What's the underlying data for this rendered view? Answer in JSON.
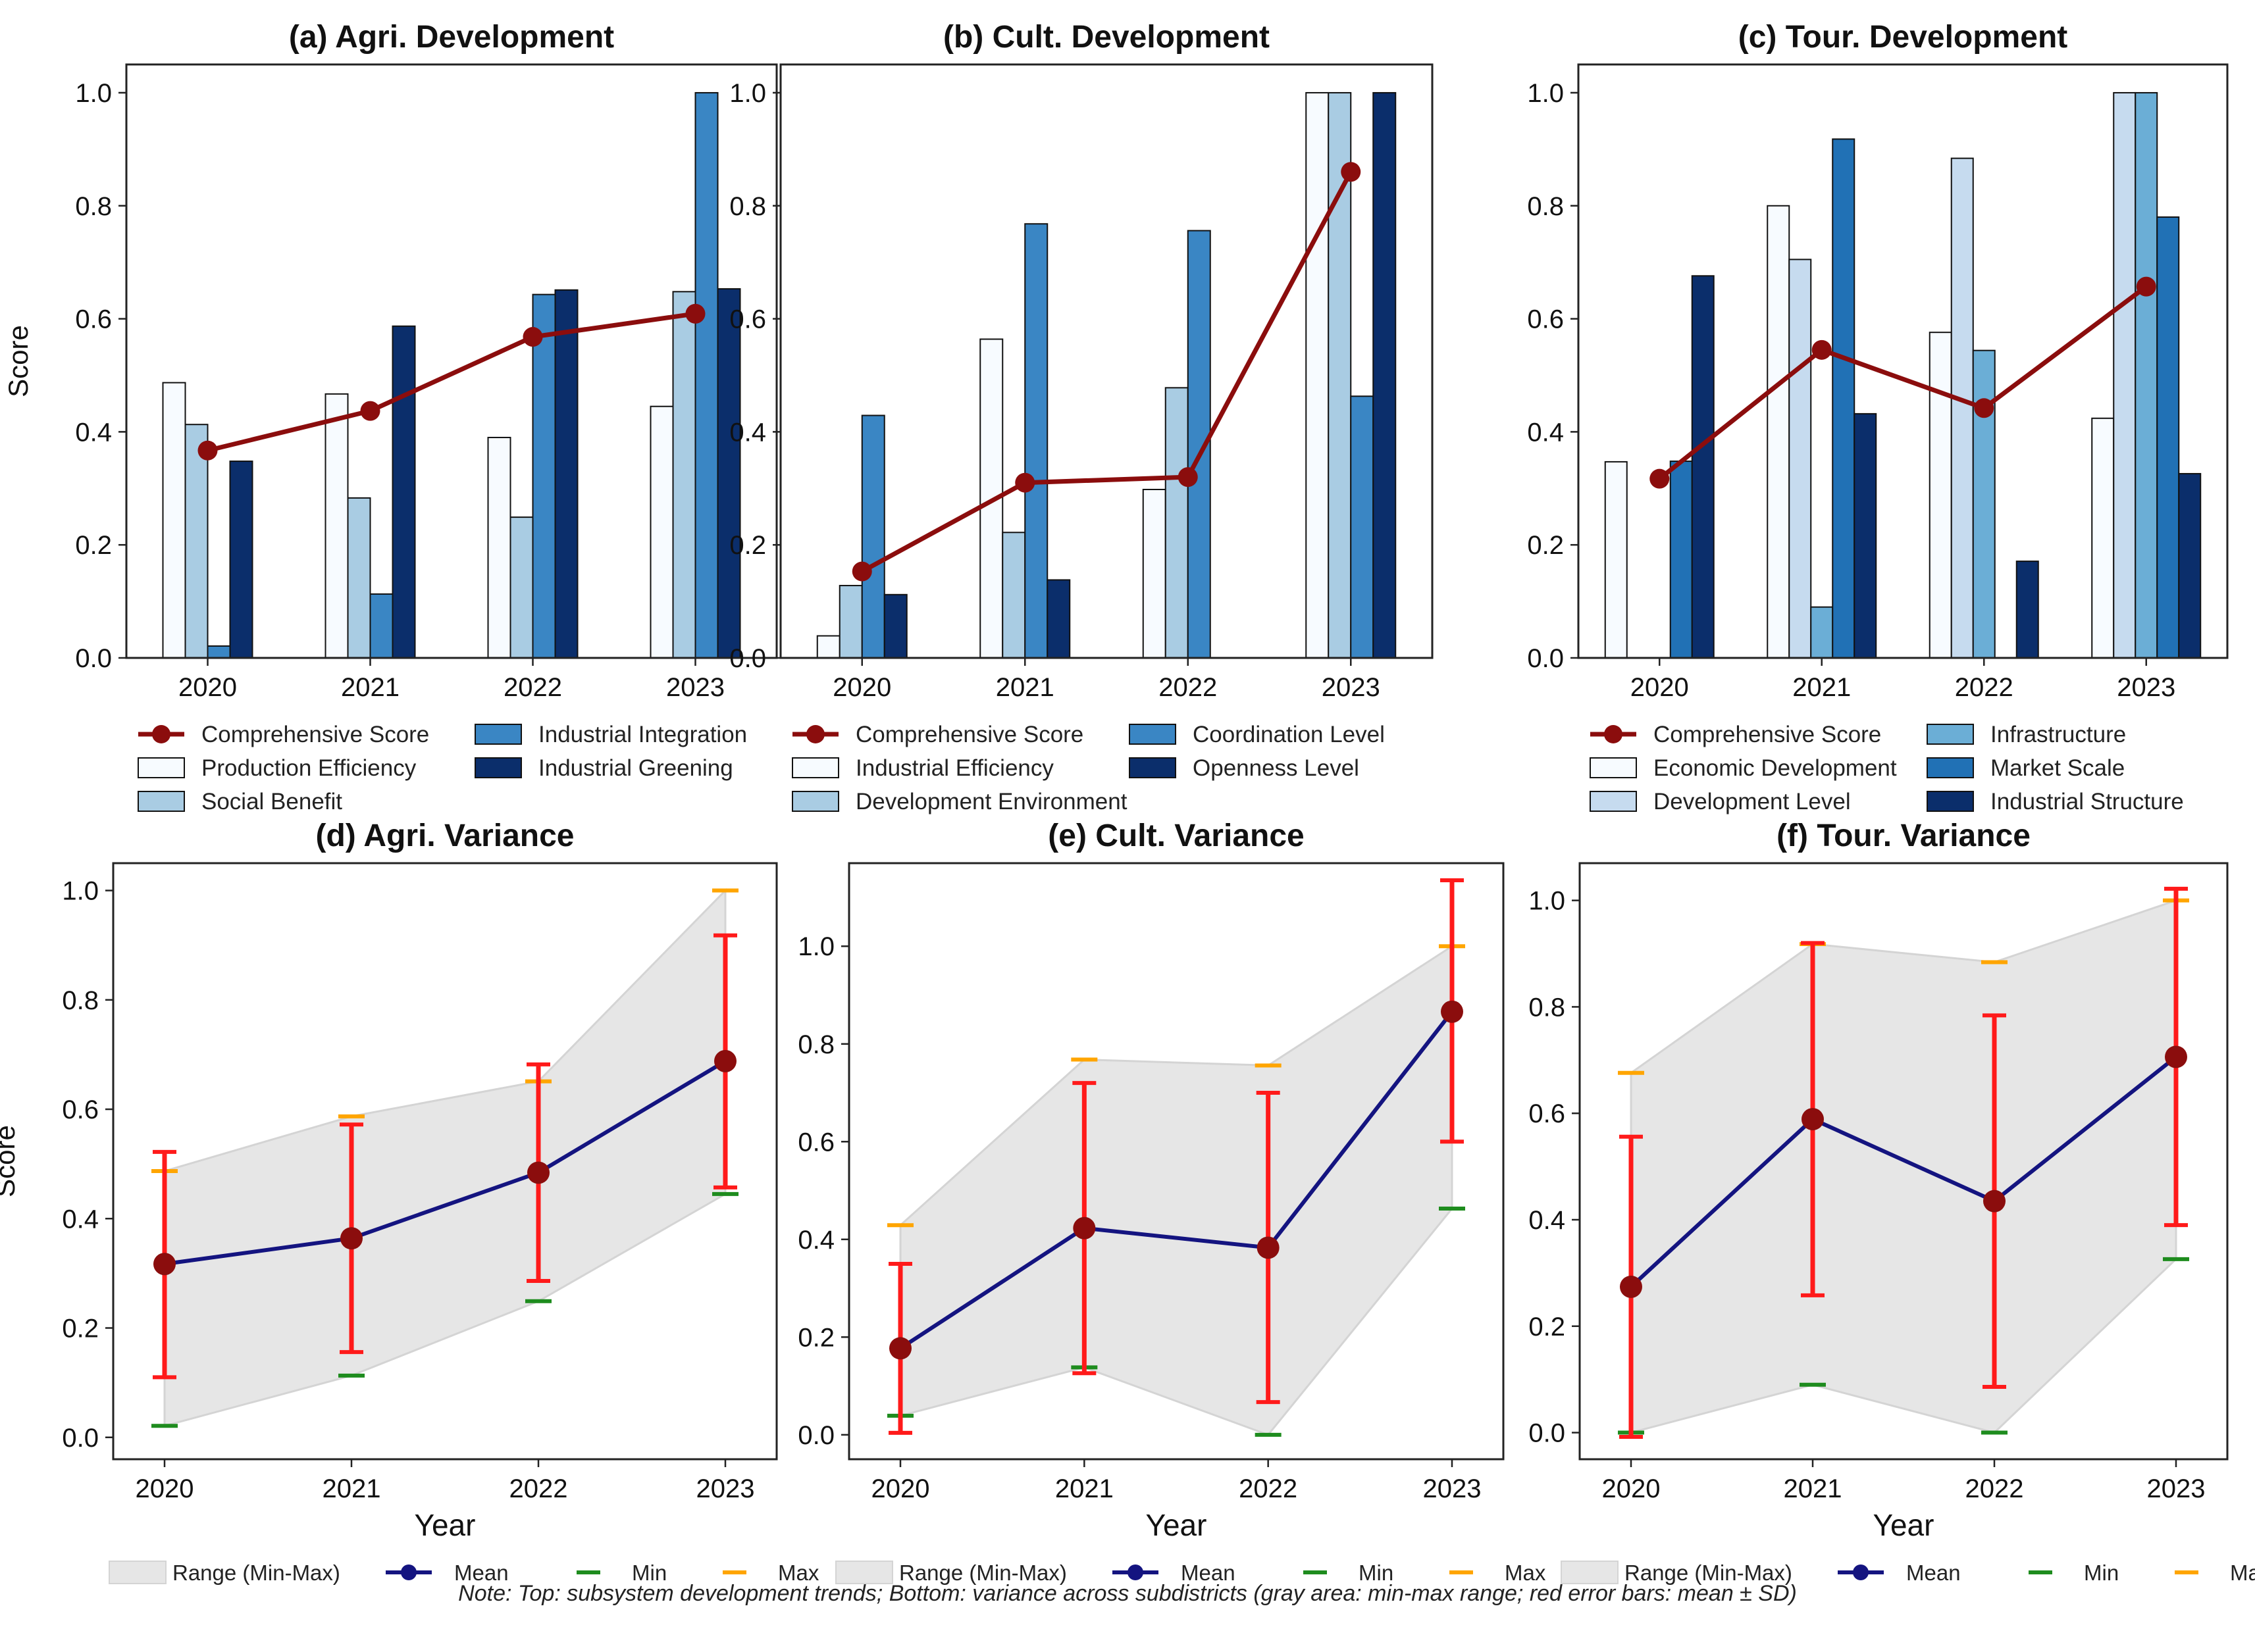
{
  "note": "Note: Top: subsystem development trends; Bottom: variance across subdistricts (gray area: min-max range; red error bars: mean ± SD)",
  "chart_data": [
    {
      "type": "bar",
      "title": "(a) Agri. Development",
      "ylabel": "Score",
      "xlabel": "",
      "ylim": [
        0,
        1.05
      ],
      "yticks": [
        "0.0",
        "0.2",
        "0.4",
        "0.6",
        "0.8",
        "1.0"
      ],
      "categories": [
        "2020",
        "2021",
        "2022",
        "2023"
      ],
      "series": [
        {
          "name": "Production Efficiency",
          "color": "#f7fbff",
          "values": [
            0.487,
            0.467,
            0.39,
            0.445
          ]
        },
        {
          "name": "Social Benefit",
          "color": "#a9cce3",
          "values": [
            0.413,
            0.283,
            0.249,
            0.648
          ]
        },
        {
          "name": "Industrial Integration",
          "color": "#3a86c4",
          "values": [
            0.021,
            0.113,
            0.643,
            1.0
          ]
        },
        {
          "name": "Industrial Greening",
          "color": "#0b2e6b",
          "values": [
            0.348,
            0.587,
            0.651,
            0.653
          ]
        }
      ],
      "line": {
        "name": "Comprehensive Score",
        "color": "#8b0d0d",
        "values": [
          0.367,
          0.437,
          0.568,
          0.609
        ]
      },
      "legend_order": [
        "Comprehensive Score",
        "Production Efficiency",
        "Social Benefit",
        "Industrial Integration",
        "Industrial Greening"
      ]
    },
    {
      "type": "bar",
      "title": "(b) Cult. Development",
      "ylabel": "",
      "xlabel": "",
      "ylim": [
        0,
        1.05
      ],
      "yticks": [
        "0.0",
        "0.2",
        "0.4",
        "0.6",
        "0.8",
        "1.0"
      ],
      "categories": [
        "2020",
        "2021",
        "2022",
        "2023"
      ],
      "series": [
        {
          "name": "Industrial Efficiency",
          "color": "#f7fbff",
          "values": [
            0.039,
            0.564,
            0.298,
            1.0
          ]
        },
        {
          "name": "Development Environment",
          "color": "#a9cce3",
          "values": [
            0.128,
            0.222,
            0.478,
            1.0
          ]
        },
        {
          "name": "Coordination Level",
          "color": "#3a86c4",
          "values": [
            0.429,
            0.768,
            0.756,
            0.463
          ]
        },
        {
          "name": "Openness Level",
          "color": "#0b2e6b",
          "values": [
            0.112,
            0.138,
            0.0,
            1.0
          ]
        }
      ],
      "line": {
        "name": "Comprehensive Score",
        "color": "#8b0d0d",
        "values": [
          0.153,
          0.31,
          0.32,
          0.86
        ]
      },
      "legend_order": [
        "Comprehensive Score",
        "Industrial Efficiency",
        "Development Environment",
        "Coordination Level",
        "Openness Level"
      ]
    },
    {
      "type": "bar",
      "title": "(c) Tour. Development",
      "ylabel": "",
      "xlabel": "",
      "ylim": [
        0,
        1.05
      ],
      "yticks": [
        "0.0",
        "0.2",
        "0.4",
        "0.6",
        "0.8",
        "1.0"
      ],
      "categories": [
        "2020",
        "2021",
        "2022",
        "2023"
      ],
      "series": [
        {
          "name": "Economic Development",
          "color": "#f7fbff",
          "values": [
            0.347,
            0.8,
            0.576,
            0.424
          ]
        },
        {
          "name": "Development Level",
          "color": "#c6dbef",
          "values": [
            0.0,
            0.705,
            0.884,
            1.0
          ]
        },
        {
          "name": "Infrastructure",
          "color": "#6baed6",
          "values": [
            0.0,
            0.09,
            0.544,
            1.0
          ]
        },
        {
          "name": "Market Scale",
          "color": "#2171b5",
          "values": [
            0.348,
            0.918,
            0.0,
            0.78
          ]
        },
        {
          "name": "Industrial Structure",
          "color": "#0b2e6b",
          "values": [
            0.676,
            0.432,
            0.171,
            0.326
          ]
        }
      ],
      "line": {
        "name": "Comprehensive Score",
        "color": "#8b0d0d",
        "values": [
          0.317,
          0.545,
          0.442,
          0.657
        ]
      },
      "legend_order": [
        "Comprehensive Score",
        "Economic Development",
        "Development Level",
        "Infrastructure",
        "Market Scale",
        "Industrial Structure"
      ]
    },
    {
      "type": "line",
      "title": "(d) Agri. Variance",
      "ylabel": "Score",
      "xlabel": "Year",
      "ylim": [
        -0.04,
        1.05
      ],
      "yticks": [
        "0.0",
        "0.2",
        "0.4",
        "0.6",
        "0.8",
        "1.0"
      ],
      "categories": [
        "2020",
        "2021",
        "2022",
        "2023"
      ],
      "mean": [
        0.317,
        0.364,
        0.484,
        0.688
      ],
      "min": [
        0.021,
        0.113,
        0.249,
        0.445
      ],
      "max": [
        0.487,
        0.587,
        0.651,
        1.0
      ],
      "sd_low": [
        0.11,
        0.156,
        0.286,
        0.457
      ],
      "sd_high": [
        0.522,
        0.572,
        0.682,
        0.918
      ],
      "legend": [
        "Range (Min-Max)",
        "Mean",
        "Min",
        "Max"
      ]
    },
    {
      "type": "line",
      "title": "(e) Cult. Variance",
      "ylabel": "",
      "xlabel": "Year",
      "ylim": [
        -0.05,
        1.17
      ],
      "yticks": [
        "0.0",
        "0.2",
        "0.4",
        "0.6",
        "0.8",
        "1.0"
      ],
      "categories": [
        "2020",
        "2021",
        "2022",
        "2023"
      ],
      "mean": [
        0.177,
        0.423,
        0.383,
        0.866
      ],
      "min": [
        0.039,
        0.138,
        0.0,
        0.463
      ],
      "max": [
        0.429,
        0.768,
        0.756,
        1.0
      ],
      "sd_low": [
        0.004,
        0.126,
        0.067,
        0.6
      ],
      "sd_high": [
        0.35,
        0.72,
        0.7,
        1.135
      ],
      "legend": [
        "Range (Min-Max)",
        "Mean",
        "Min",
        "Max"
      ]
    },
    {
      "type": "line",
      "title": "(f) Tour. Variance",
      "ylabel": "",
      "xlabel": "Year",
      "ylim": [
        -0.05,
        1.07
      ],
      "yticks": [
        "0.0",
        "0.2",
        "0.4",
        "0.6",
        "0.8",
        "1.0"
      ],
      "categories": [
        "2020",
        "2021",
        "2022",
        "2023"
      ],
      "mean": [
        0.274,
        0.589,
        0.435,
        0.706
      ],
      "min": [
        0.0,
        0.09,
        0.0,
        0.326
      ],
      "max": [
        0.676,
        0.918,
        0.884,
        1.0
      ],
      "sd_low": [
        -0.008,
        0.258,
        0.086,
        0.39
      ],
      "sd_high": [
        0.556,
        0.92,
        0.784,
        1.022
      ],
      "legend": [
        "Range (Min-Max)",
        "Mean",
        "Min",
        "Max"
      ]
    }
  ]
}
